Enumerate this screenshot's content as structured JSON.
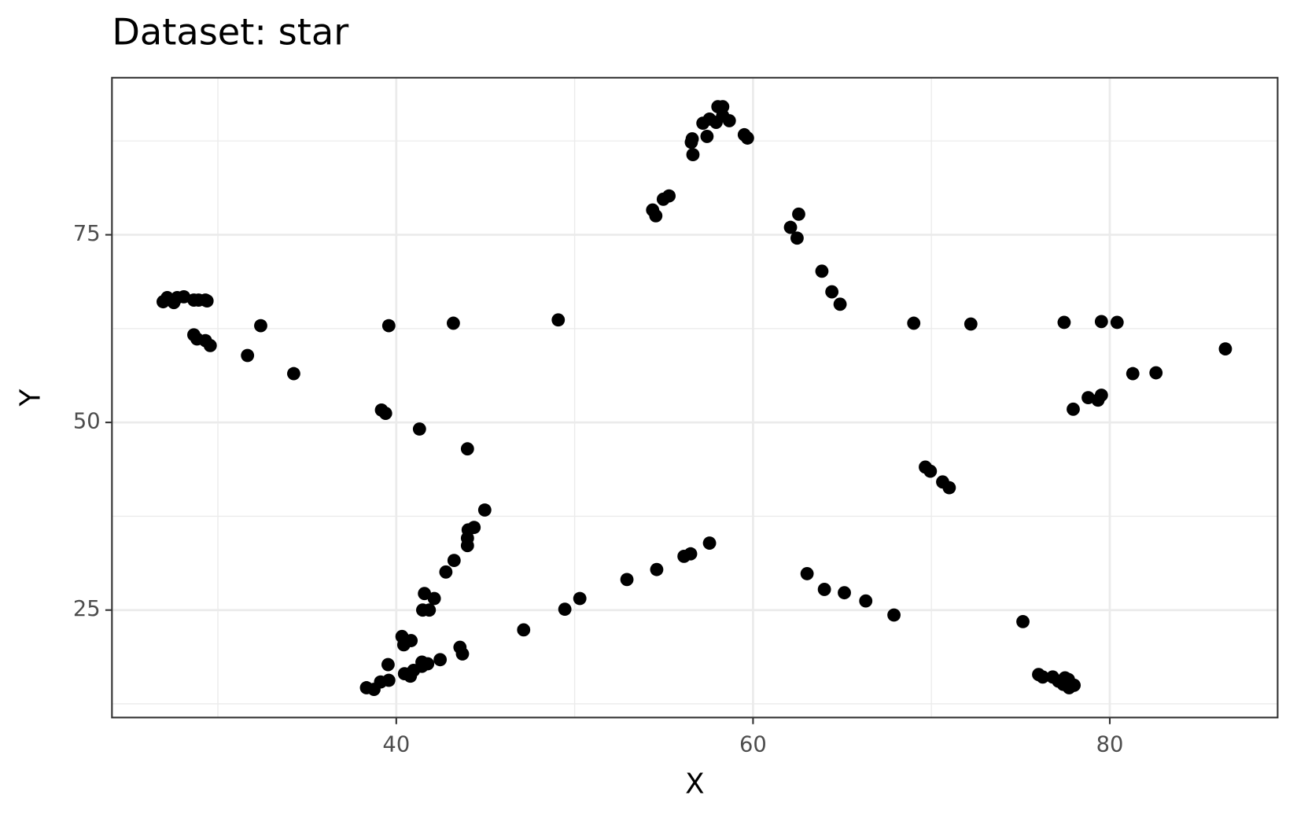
{
  "chart_data": {
    "type": "scatter",
    "title": "Dataset: star",
    "x_label": "X",
    "y_label": "Y",
    "xlim": [
      24.06,
      89.41
    ],
    "ylim": [
      10.68,
      95.93
    ],
    "xticks": [
      40,
      60,
      80
    ],
    "yticks": [
      25,
      50,
      75
    ],
    "xminor": [
      30,
      50,
      70
    ],
    "yminor": [
      12.5,
      37.5,
      62.5,
      87.5
    ],
    "grid": true,
    "color": "#000000",
    "x": [
      26.93,
      27.16,
      27.53,
      27.72,
      28.09,
      28.65,
      28.65,
      28.83,
      28.92,
      29.3,
      29.39,
      29.3,
      29.57,
      31.66,
      32.4,
      34.25,
      39.58,
      39.17,
      39.4,
      41.3,
      43.2,
      43.99,
      49.08,
      44.96,
      44.36,
      44.03,
      43.99,
      43.99,
      43.24,
      42.78,
      42.13,
      41.58,
      41.85,
      41.48,
      40.32,
      40.83,
      40.42,
      39.54,
      38.33,
      38.75,
      39.12,
      39.58,
      40.46,
      40.79,
      40.97,
      41.44,
      41.44,
      41.76,
      42.46,
      43.57,
      43.71,
      47.14,
      49.45,
      50.29,
      52.93,
      54.6,
      56.13,
      56.5,
      57.56,
      54.37,
      54.55,
      54.97,
      55.29,
      56.54,
      56.59,
      56.63,
      57.42,
      57.19,
      57.56,
      57.93,
      58.03,
      58.3,
      58.3,
      58.67,
      59.51,
      59.69,
      62.1,
      62.56,
      62.47,
      63.86,
      64.42,
      64.88,
      69.01,
      72.21,
      77.44,
      79.53,
      80.41,
      86.48,
      81.29,
      82.59,
      77.95,
      78.79,
      79.34,
      79.53,
      69.66,
      69.94,
      70.63,
      71.0,
      63.03,
      64.0,
      65.12,
      66.32,
      67.9,
      75.13,
      76.01,
      76.24,
      76.8,
      77.12,
      77.49,
      77.4,
      77.72,
      78.0,
      77.68
    ],
    "y": [
      66.08,
      66.63,
      65.97,
      66.63,
      66.74,
      66.3,
      61.67,
      61.12,
      66.3,
      66.3,
      66.19,
      60.9,
      60.24,
      58.92,
      62.89,
      56.5,
      62.89,
      51.65,
      51.21,
      49.12,
      63.22,
      46.48,
      63.66,
      38.33,
      36.01,
      35.68,
      34.58,
      33.59,
      31.61,
      30.07,
      26.54,
      27.2,
      25.0,
      25.0,
      21.48,
      20.93,
      20.37,
      17.73,
      14.65,
      14.43,
      15.42,
      15.64,
      16.52,
      16.19,
      16.96,
      17.51,
      18.06,
      17.84,
      18.39,
      20.04,
      19.16,
      22.36,
      25.11,
      26.54,
      29.07,
      30.4,
      32.16,
      32.49,
      33.92,
      78.3,
      77.53,
      79.74,
      80.18,
      87.33,
      87.78,
      85.68,
      88.11,
      89.87,
      90.42,
      89.98,
      92.07,
      92.07,
      90.86,
      90.2,
      88.33,
      87.89,
      75.99,
      77.75,
      74.56,
      70.15,
      67.4,
      65.75,
      63.22,
      63.11,
      63.33,
      63.44,
      63.33,
      59.8,
      56.5,
      56.61,
      51.76,
      53.3,
      52.97,
      53.63,
      44.05,
      43.5,
      42.07,
      41.3,
      29.85,
      27.75,
      27.31,
      26.21,
      24.34,
      23.46,
      16.41,
      16.08,
      16.08,
      15.53,
      15.97,
      15.09,
      14.65,
      14.98,
      15.75
    ]
  }
}
